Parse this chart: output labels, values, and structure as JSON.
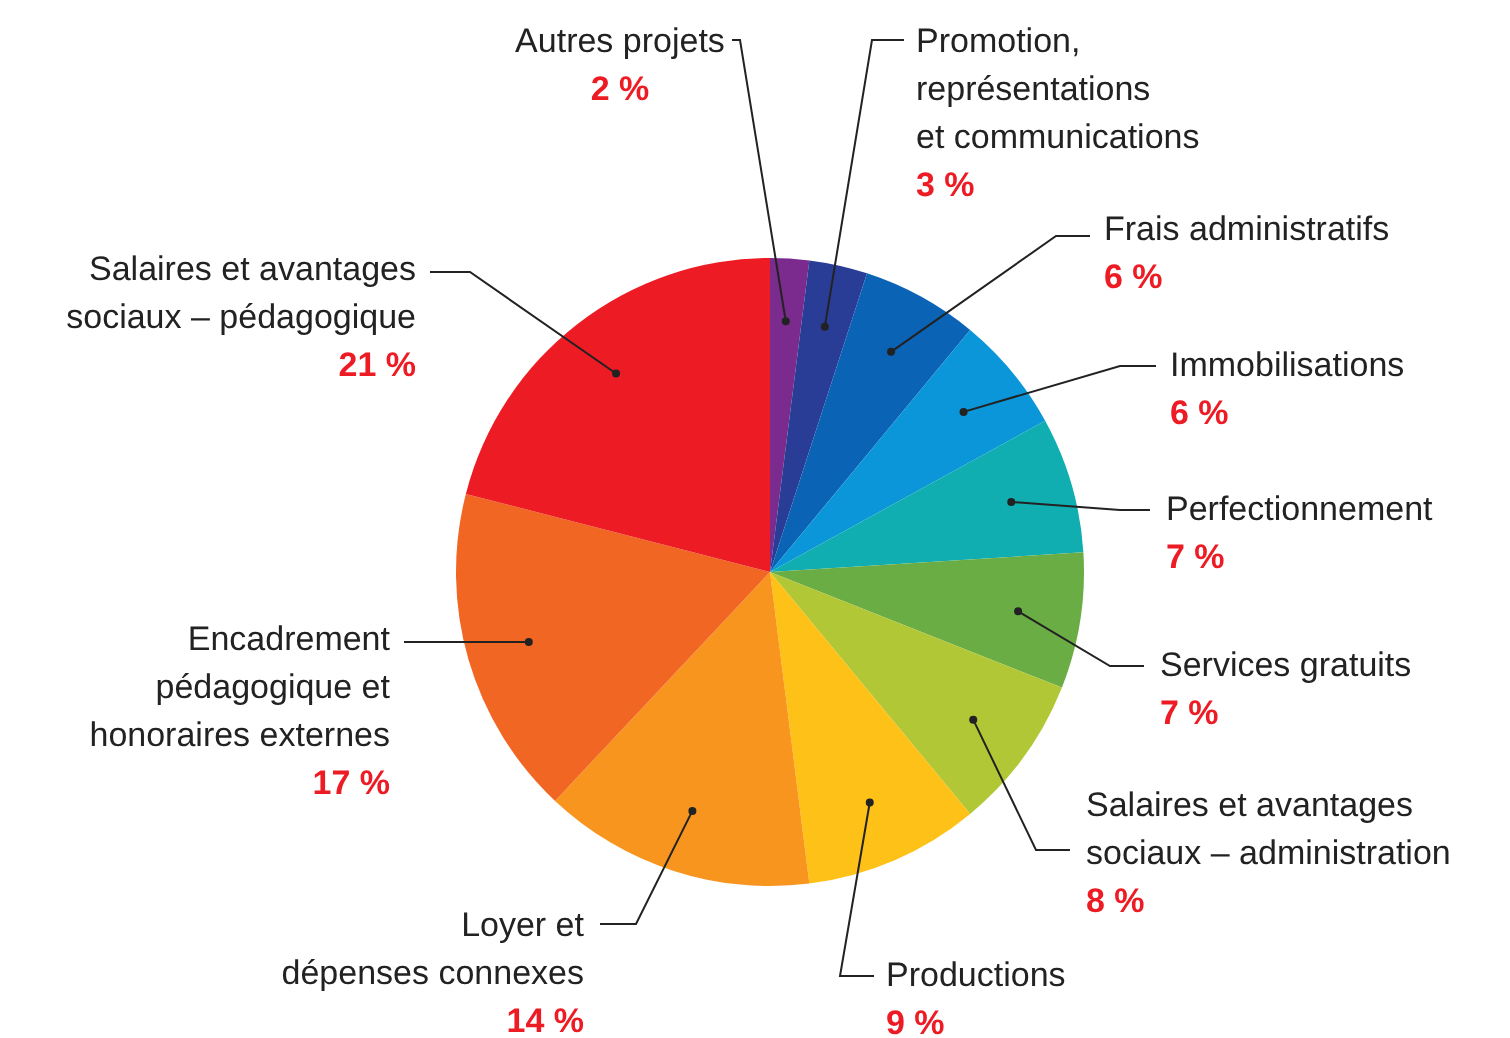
{
  "chart_data": {
    "type": "pie",
    "categories": [
      "Autres projets",
      "Promotion, représentations et communications",
      "Frais administratifs",
      "Immobilisations",
      "Perfectionnement",
      "Services gratuits",
      "Salaires et avantages sociaux – administration",
      "Productions",
      "Loyer et dépenses connexes",
      "Encadrement pédagogique et honoraires externes",
      "Salaires et avantages sociaux – pédagogique"
    ],
    "values": [
      2,
      3,
      6,
      6,
      7,
      7,
      8,
      9,
      14,
      17,
      21
    ],
    "value_labels": [
      "2 %",
      "3 %",
      "6 %",
      "6 %",
      "7 %",
      "7 %",
      "8 %",
      "9 %",
      "14 %",
      "17 %",
      "21 %"
    ],
    "colors": [
      "#7b2a8e",
      "#2a3d96",
      "#0b63b5",
      "#0a96d8",
      "#10aeb0",
      "#6aad45",
      "#b2c735",
      "#fec117",
      "#f7951f",
      "#f26624",
      "#ed1c24"
    ]
  }
}
